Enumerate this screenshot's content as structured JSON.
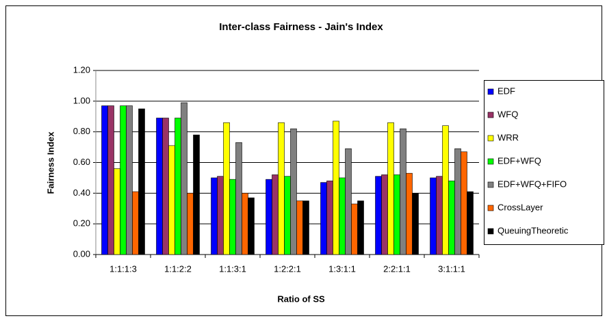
{
  "chart_data": {
    "type": "bar",
    "title": "Inter-class Fairness - Jain's Index",
    "xlabel": "Ratio of SS",
    "ylabel": "Fairness Index",
    "categories": [
      "1:1:1:3",
      "1:1:2:2",
      "1:1:3:1",
      "1:2:2:1",
      "1:3:1:1",
      "2:2:1:1",
      "3:1:1:1"
    ],
    "series": [
      {
        "name": "EDF",
        "color": "#0000ff",
        "values": [
          0.97,
          0.89,
          0.5,
          0.49,
          0.47,
          0.51,
          0.5
        ]
      },
      {
        "name": "WFQ",
        "color": "#993366",
        "values": [
          0.97,
          0.89,
          0.51,
          0.52,
          0.48,
          0.52,
          0.51
        ]
      },
      {
        "name": "WRR",
        "color": "#ffff00",
        "values": [
          0.56,
          0.71,
          0.86,
          0.86,
          0.87,
          0.86,
          0.84
        ]
      },
      {
        "name": "EDF+WFQ",
        "color": "#00ff00",
        "values": [
          0.97,
          0.89,
          0.49,
          0.51,
          0.5,
          0.52,
          0.48
        ]
      },
      {
        "name": "EDF+WFQ+FIFO",
        "color": "#808080",
        "values": [
          0.97,
          0.99,
          0.73,
          0.82,
          0.69,
          0.82,
          0.69
        ]
      },
      {
        "name": "CrossLayer",
        "color": "#ff6600",
        "values": [
          0.41,
          0.4,
          0.4,
          0.35,
          0.33,
          0.53,
          0.67
        ]
      },
      {
        "name": "QueuingTheoretic",
        "color": "#000000",
        "values": [
          0.95,
          0.78,
          0.37,
          0.35,
          0.35,
          0.4,
          0.41
        ]
      }
    ],
    "ylim": [
      0,
      1.2
    ],
    "yticks": [
      {
        "value": 0,
        "label": "0.00"
      },
      {
        "value": 0.2,
        "label": "0.20"
      },
      {
        "value": 0.4,
        "label": "0.40"
      },
      {
        "value": 0.6,
        "label": "0.60"
      },
      {
        "value": 0.8,
        "label": "0.80"
      },
      {
        "value": 1.0,
        "label": "1.00"
      },
      {
        "value": 1.2,
        "label": "1.20"
      }
    ],
    "grid": true,
    "legend": "right"
  }
}
